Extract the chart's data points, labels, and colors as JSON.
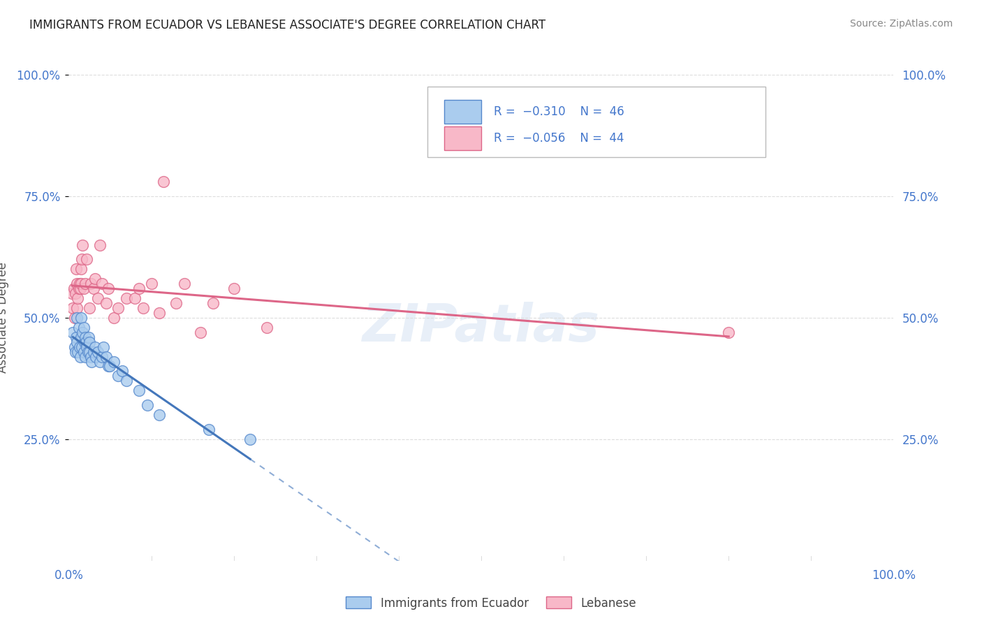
{
  "title": "IMMIGRANTS FROM ECUADOR VS LEBANESE ASSOCIATE'S DEGREE CORRELATION CHART",
  "source": "Source: ZipAtlas.com",
  "ylabel": "Associate's Degree",
  "legend_labels": [
    "Immigrants from Ecuador",
    "Lebanese"
  ],
  "blue_fill": "#aaccee",
  "blue_edge": "#5588cc",
  "pink_fill": "#f8b8c8",
  "pink_edge": "#dd6688",
  "blue_line": "#4477bb",
  "pink_line": "#dd6688",
  "watermark": "ZIPatlas",
  "blue_scatter_x": [
    0.005,
    0.007,
    0.008,
    0.009,
    0.01,
    0.01,
    0.011,
    0.012,
    0.013,
    0.014,
    0.015,
    0.015,
    0.016,
    0.017,
    0.018,
    0.018,
    0.019,
    0.02,
    0.02,
    0.021,
    0.022,
    0.023,
    0.024,
    0.025,
    0.025,
    0.027,
    0.028,
    0.03,
    0.032,
    0.033,
    0.035,
    0.038,
    0.04,
    0.042,
    0.045,
    0.048,
    0.05,
    0.055,
    0.06,
    0.065,
    0.07,
    0.085,
    0.095,
    0.11,
    0.17,
    0.22
  ],
  "blue_scatter_y": [
    0.47,
    0.44,
    0.43,
    0.46,
    0.5,
    0.45,
    0.43,
    0.48,
    0.44,
    0.42,
    0.5,
    0.46,
    0.44,
    0.47,
    0.43,
    0.48,
    0.45,
    0.46,
    0.42,
    0.45,
    0.44,
    0.43,
    0.46,
    0.45,
    0.43,
    0.42,
    0.41,
    0.43,
    0.44,
    0.42,
    0.43,
    0.41,
    0.42,
    0.44,
    0.42,
    0.4,
    0.4,
    0.41,
    0.38,
    0.39,
    0.37,
    0.35,
    0.32,
    0.3,
    0.27,
    0.25
  ],
  "pink_scatter_x": [
    0.004,
    0.005,
    0.006,
    0.007,
    0.008,
    0.009,
    0.01,
    0.01,
    0.011,
    0.012,
    0.013,
    0.014,
    0.015,
    0.015,
    0.016,
    0.017,
    0.018,
    0.02,
    0.022,
    0.025,
    0.027,
    0.03,
    0.032,
    0.035,
    0.038,
    0.04,
    0.045,
    0.048,
    0.055,
    0.06,
    0.07,
    0.08,
    0.085,
    0.09,
    0.1,
    0.11,
    0.115,
    0.13,
    0.14,
    0.16,
    0.175,
    0.2,
    0.24,
    0.8
  ],
  "pink_scatter_y": [
    0.55,
    0.52,
    0.56,
    0.5,
    0.55,
    0.6,
    0.52,
    0.57,
    0.54,
    0.56,
    0.57,
    0.56,
    0.6,
    0.57,
    0.62,
    0.65,
    0.56,
    0.57,
    0.62,
    0.52,
    0.57,
    0.56,
    0.58,
    0.54,
    0.65,
    0.57,
    0.53,
    0.56,
    0.5,
    0.52,
    0.54,
    0.54,
    0.56,
    0.52,
    0.57,
    0.51,
    0.78,
    0.53,
    0.57,
    0.47,
    0.53,
    0.56,
    0.48,
    0.47
  ],
  "xlim": [
    0.0,
    1.0
  ],
  "ylim": [
    0.0,
    1.0
  ],
  "bg_color": "#ffffff",
  "title_color": "#222222",
  "source_color": "#888888",
  "tick_color": "#4477cc",
  "ylabel_color": "#555555",
  "grid_color": "#dddddd"
}
